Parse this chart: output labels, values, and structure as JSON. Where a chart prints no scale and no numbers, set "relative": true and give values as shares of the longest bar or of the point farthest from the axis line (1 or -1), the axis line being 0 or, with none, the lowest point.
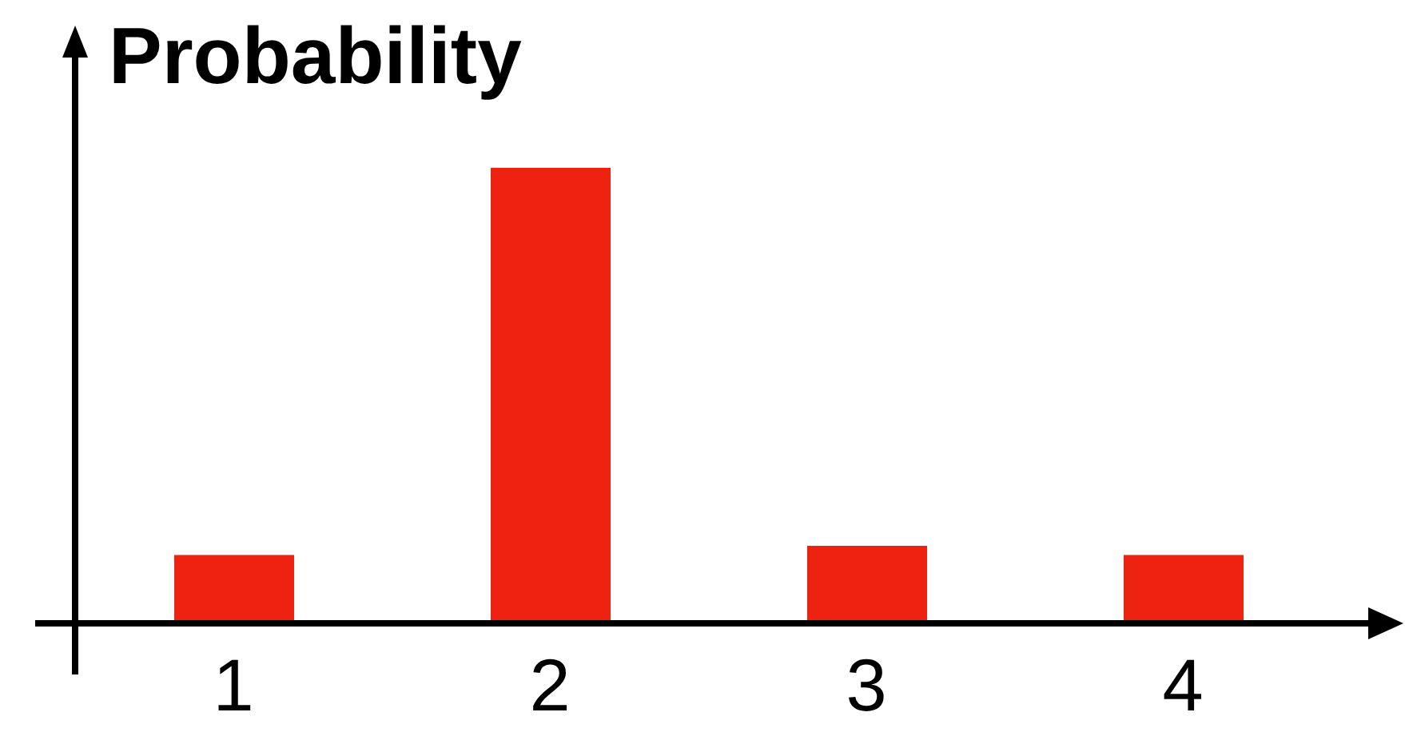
{
  "chart_data": {
    "type": "bar",
    "title": "Probability",
    "categories": [
      "1",
      "2",
      "3",
      "4"
    ],
    "values": [
      0.15,
      1,
      0.17,
      0.15
    ],
    "color": "#ee2211",
    "relative": true
  }
}
